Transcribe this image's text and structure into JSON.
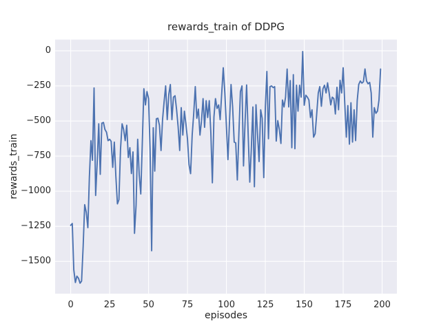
{
  "chart_data": {
    "type": "line",
    "title": "rewards_train of DDPG",
    "xlabel": "episodes",
    "ylabel": "rewards_train",
    "series_name": "rewards_train",
    "x_start": 0,
    "x_step": 1,
    "values": [
      -1243,
      -1230,
      -1560,
      -1650,
      -1605,
      -1620,
      -1655,
      -1640,
      -1390,
      -1096,
      -1150,
      -1260,
      -900,
      -640,
      -780,
      -265,
      -1030,
      -800,
      -520,
      -880,
      -515,
      -510,
      -560,
      -580,
      -640,
      -630,
      -645,
      -830,
      -650,
      -890,
      -1090,
      -1060,
      -700,
      -520,
      -560,
      -640,
      -530,
      -760,
      -690,
      -874,
      -720,
      -1300,
      -1100,
      -630,
      -880,
      -1020,
      -660,
      -270,
      -385,
      -290,
      -340,
      -700,
      -1424,
      -548,
      -857,
      -484,
      -480,
      -530,
      -710,
      -490,
      -360,
      -250,
      -490,
      -310,
      -240,
      -490,
      -330,
      -320,
      -420,
      -540,
      -710,
      -405,
      -600,
      -430,
      -520,
      -630,
      -810,
      -875,
      -600,
      -450,
      -255,
      -480,
      -415,
      -600,
      -500,
      -340,
      -545,
      -355,
      -475,
      -355,
      -585,
      -940,
      -470,
      -340,
      -410,
      -385,
      -490,
      -300,
      -121,
      -300,
      -540,
      -775,
      -500,
      -240,
      -400,
      -650,
      -655,
      -920,
      -600,
      -290,
      -250,
      -820,
      -500,
      -243,
      -600,
      -935,
      -700,
      -400,
      -968,
      -384,
      -600,
      -789,
      -420,
      -480,
      -903,
      -400,
      -147,
      -626,
      -255,
      -250,
      -262,
      -255,
      -643,
      -497,
      -560,
      -660,
      -350,
      -400,
      -330,
      -130,
      -400,
      -212,
      -690,
      -170,
      -697,
      -245,
      -430,
      -245,
      -330,
      -5,
      -387,
      -316,
      -330,
      -350,
      -475,
      -420,
      -615,
      -590,
      -450,
      -300,
      -255,
      -395,
      -270,
      -245,
      -300,
      -228,
      -300,
      -385,
      -330,
      -340,
      -450,
      -260,
      -420,
      -210,
      -300,
      -121,
      -370,
      -615,
      -390,
      -665,
      -370,
      -650,
      -420,
      -640,
      -355,
      -240,
      -215,
      -230,
      -220,
      -129,
      -215,
      -235,
      -225,
      -300,
      -615,
      -405,
      -445,
      -430,
      -350,
      -130
    ],
    "xlim": [
      -10,
      209.5
    ],
    "ylim": [
      -1730,
      80
    ],
    "xticks": [
      0,
      25,
      50,
      75,
      100,
      125,
      150,
      175,
      200
    ],
    "xtick_labels": [
      "0",
      "25",
      "50",
      "75",
      "100",
      "125",
      "150",
      "175",
      "200"
    ],
    "yticks": [
      0,
      -250,
      -500,
      -750,
      -1000,
      -1250,
      -1500
    ],
    "ytick_labels": [
      "0",
      "−250",
      "−500",
      "−750",
      "−1000",
      "−1250",
      "−1500"
    ],
    "grid": true,
    "legend": false,
    "style": "seaborn-darkgrid",
    "line_color": "#4c72b0",
    "axes_bg": "#eaeaf2",
    "grid_color": "#ffffff",
    "fig_bg": "#ffffff",
    "text_color": "#262626"
  }
}
